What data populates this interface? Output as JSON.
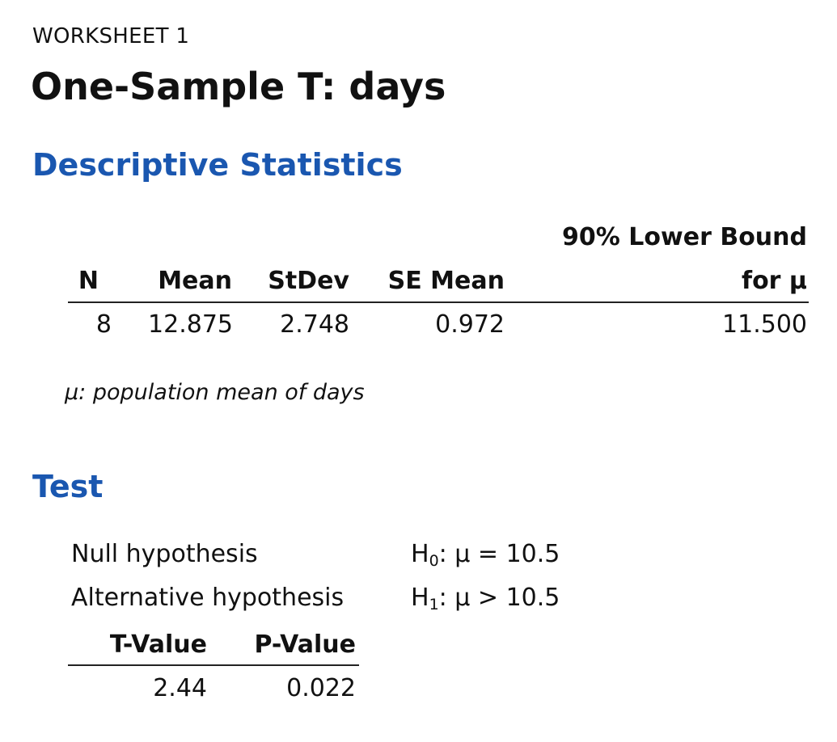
{
  "worksheet_label": "WORKSHEET 1",
  "title": "One-Sample T: days",
  "descriptive": {
    "heading": "Descriptive Statistics",
    "columns": {
      "n": "N",
      "mean": "Mean",
      "stdev": "StDev",
      "se_mean": "SE Mean",
      "lower_bound_line1": "90% Lower Bound",
      "lower_bound_line2": "for μ"
    },
    "row": {
      "n": "8",
      "mean": "12.875",
      "stdev": "2.748",
      "se_mean": "0.972",
      "lower_bound": "11.500"
    },
    "note": "μ: population mean of days"
  },
  "test": {
    "heading": "Test",
    "null_label": "Null hypothesis",
    "null_prefix": "H",
    "null_sub": "0",
    "null_value": ": μ = 10.5",
    "alt_label": "Alternative hypothesis",
    "alt_prefix": "H",
    "alt_sub": "1",
    "alt_value": ": μ > 10.5",
    "columns": {
      "t_value": "T-Value",
      "p_value": "P-Value"
    },
    "row": {
      "t_value": "2.44",
      "p_value": "0.022"
    }
  }
}
